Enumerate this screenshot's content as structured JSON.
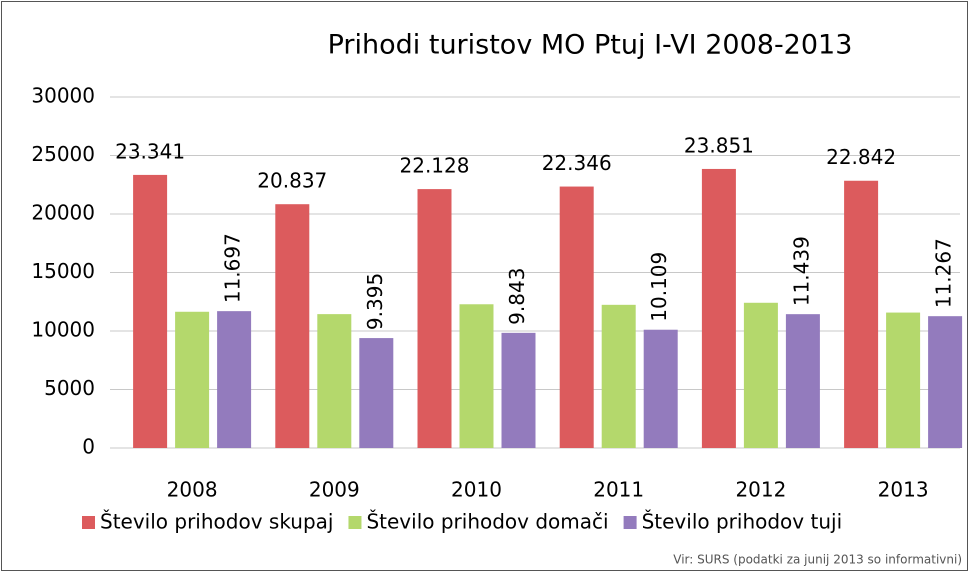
{
  "chart_data": {
    "type": "bar",
    "title": "Prihodi turistov MO Ptuj I-VI 2008-2013",
    "categories": [
      "2008",
      "2009",
      "2010",
      "2011",
      "2012",
      "2013"
    ],
    "series": [
      {
        "name": "Število prihodov skupaj",
        "color": "#dc5b5d",
        "values": [
          23341,
          20837,
          22128,
          22346,
          23851,
          22842
        ],
        "value_labels": [
          "23.341",
          "20.837",
          "22.128",
          "22.346",
          "23.851",
          "22.842"
        ]
      },
      {
        "name": "Število prihodov domači",
        "color": "#b4d86c",
        "values": [
          11644,
          11442,
          12285,
          12237,
          12412,
          11575
        ]
      },
      {
        "name": "Število prihodov tuji",
        "color": "#937bbd",
        "values": [
          11697,
          9395,
          9843,
          10109,
          11439,
          11267
        ],
        "value_labels": [
          "11.697",
          "9.395",
          "9.843",
          "10.109",
          "11.439",
          "11.267"
        ]
      }
    ],
    "ylim": [
      0,
      30000
    ],
    "yticks": [
      0,
      5000,
      10000,
      15000,
      20000,
      25000,
      30000
    ],
    "grid": true,
    "legend": "bottom",
    "source": "Vir: SURS (podatki za junij 2013 so informativni)"
  }
}
